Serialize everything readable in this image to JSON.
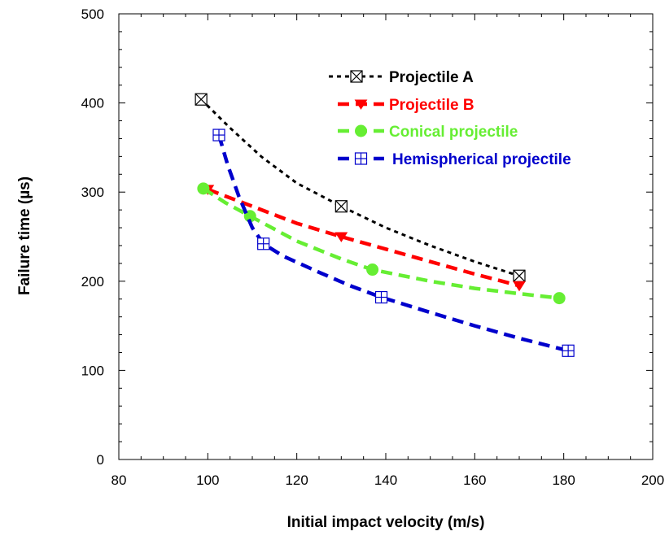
{
  "chart_data": {
    "type": "line",
    "xlabel": "Initial impact velocity (m/s)",
    "ylabel": "Failure time (µs)",
    "xlim": [
      80,
      200
    ],
    "ylim": [
      0,
      500
    ],
    "xticks": [
      80,
      100,
      120,
      140,
      160,
      180,
      200
    ],
    "yticks": [
      0,
      100,
      200,
      300,
      400,
      500
    ],
    "grid": false,
    "legend_position": "top-right",
    "series": [
      {
        "name": "Projectile A",
        "color": "#000000",
        "marker": "square-x",
        "points": [
          [
            98.5,
            404
          ],
          [
            130,
            284
          ],
          [
            170,
            206
          ]
        ],
        "curve": [
          [
            98.5,
            404
          ],
          [
            105,
            372
          ],
          [
            112,
            340
          ],
          [
            120,
            310
          ],
          [
            130,
            284
          ],
          [
            140,
            260
          ],
          [
            150,
            240
          ],
          [
            160,
            222
          ],
          [
            170,
            206
          ]
        ]
      },
      {
        "name": "Projectile B",
        "color": "#ff0000",
        "marker": "triangle-down",
        "points": [
          [
            100,
            303
          ],
          [
            130,
            250
          ],
          [
            170,
            195
          ]
        ],
        "curve": [
          [
            100,
            303
          ],
          [
            110,
            284
          ],
          [
            120,
            265
          ],
          [
            130,
            250
          ],
          [
            140,
            236
          ],
          [
            150,
            222
          ],
          [
            160,
            208
          ],
          [
            170,
            195
          ]
        ]
      },
      {
        "name": "Conical projectile",
        "color": "#66ee33",
        "marker": "circle",
        "points": [
          [
            99,
            304
          ],
          [
            109.5,
            273
          ],
          [
            137,
            213
          ],
          [
            179,
            181
          ]
        ],
        "curve": [
          [
            99,
            304
          ],
          [
            104,
            288
          ],
          [
            109.5,
            273
          ],
          [
            120,
            245
          ],
          [
            130,
            225
          ],
          [
            137,
            213
          ],
          [
            150,
            200
          ],
          [
            160,
            192
          ],
          [
            170,
            186
          ],
          [
            179,
            181
          ]
        ]
      },
      {
        "name": "Hemispherical projectile",
        "color": "#0000cc",
        "marker": "square-plus",
        "points": [
          [
            102.5,
            364
          ],
          [
            112.5,
            242
          ],
          [
            139,
            182
          ],
          [
            181,
            122
          ]
        ],
        "curve": [
          [
            102.5,
            364
          ],
          [
            104.5,
            330
          ],
          [
            107,
            295
          ],
          [
            110,
            260
          ],
          [
            112.5,
            242
          ],
          [
            117,
            228
          ],
          [
            125,
            210
          ],
          [
            132,
            195
          ],
          [
            139,
            182
          ],
          [
            150,
            165
          ],
          [
            160,
            150
          ],
          [
            170,
            136
          ],
          [
            181,
            122
          ]
        ]
      }
    ]
  }
}
